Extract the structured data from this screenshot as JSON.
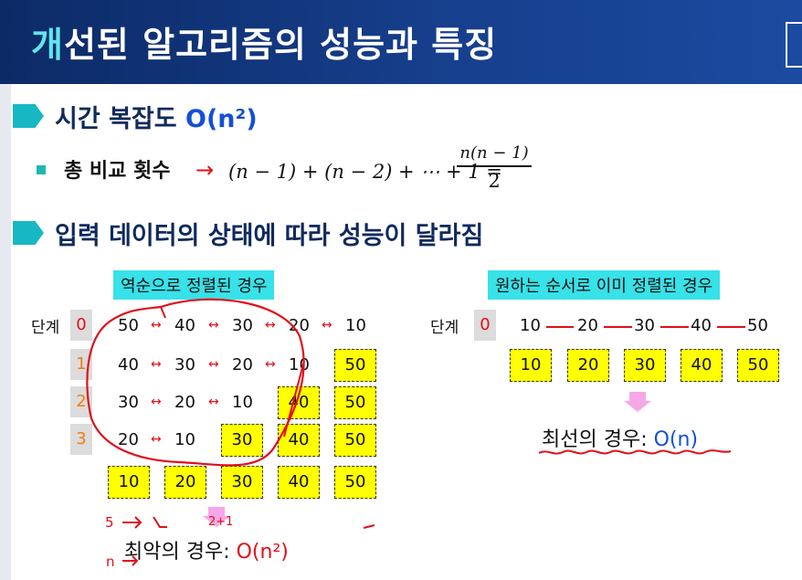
{
  "header": {
    "title_accent": "개",
    "title_rest": "선된 알고리즘의 성능과 특징"
  },
  "section1": {
    "label": "시간 복잡도",
    "complexity": "O(n²)"
  },
  "formula": {
    "label": "총 비교 횟수",
    "arrow": "→",
    "lhs": "(n − 1) + (n − 2) + ⋯ + 1 =",
    "numerator": "n(n − 1)",
    "denominator": "2"
  },
  "section2": {
    "label": "입력 데이터의 상태에 따라 성능이 달라짐"
  },
  "reverse": {
    "caption": "역순으로 정렬된 경우",
    "step_label": "단계",
    "steps": [
      "0",
      "1",
      "2",
      "3"
    ],
    "swap_symbol": "↔",
    "rows": [
      [
        "50",
        "40",
        "30",
        "20",
        "10"
      ],
      [
        "40",
        "30",
        "20",
        "10"
      ],
      [
        "30",
        "20",
        "10"
      ],
      [
        "20",
        "10"
      ]
    ],
    "fixed": [
      [
        "50"
      ],
      [
        "40",
        "50"
      ],
      [
        "30",
        "40",
        "50"
      ]
    ],
    "final": [
      "10",
      "20",
      "30",
      "40",
      "50"
    ],
    "worst_prefix": "최악의 경우: ",
    "worst_value": "O(n²)"
  },
  "sorted": {
    "caption": "원하는 순서로 이미 정렬된 경우",
    "step_label": "단계",
    "step": "0",
    "values": [
      "10",
      "20",
      "30",
      "40",
      "50"
    ],
    "result": [
      "10",
      "20",
      "30",
      "40",
      "50"
    ],
    "best_prefix": "최선의 경우: ",
    "best_value": "O(n)"
  },
  "handwriting": {
    "note1": "5",
    "note2": "n",
    "note3": "2+1"
  },
  "colors": {
    "header": "#163f8c",
    "accent": "#5fe7ec",
    "caption_bg": "#37e2e9",
    "box": "#ffff00",
    "red": "#e0101a",
    "blue": "#1450d6"
  }
}
